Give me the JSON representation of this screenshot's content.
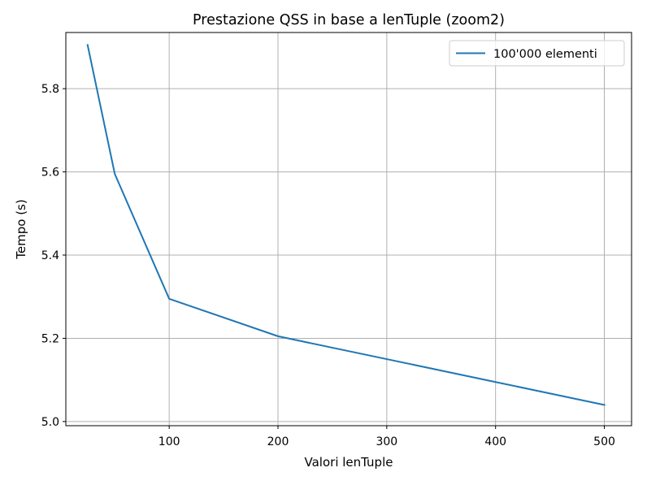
{
  "chart_data": {
    "type": "line",
    "title": "Prestazione QSS in base a lenTuple (zoom2)",
    "xlabel": "Valori lenTuple",
    "ylabel": "Tempo (s)",
    "xlim": [
      5,
      525
    ],
    "ylim": [
      4.99,
      5.935
    ],
    "xticks": [
      100,
      200,
      300,
      400,
      500
    ],
    "yticks": [
      5.0,
      5.2,
      5.4,
      5.6,
      5.8
    ],
    "xtick_labels": [
      "100",
      "200",
      "300",
      "400",
      "500"
    ],
    "ytick_labels": [
      "5.0",
      "5.2",
      "5.4",
      "5.6",
      "5.8"
    ],
    "grid": true,
    "legend_position": "top-right",
    "series": [
      {
        "name": "100'000 elementi",
        "color": "#1f77b4",
        "x": [
          25,
          50,
          100,
          200,
          300,
          400,
          500
        ],
        "y": [
          5.905,
          5.595,
          5.295,
          5.205,
          5.15,
          5.095,
          5.04
        ]
      }
    ]
  }
}
